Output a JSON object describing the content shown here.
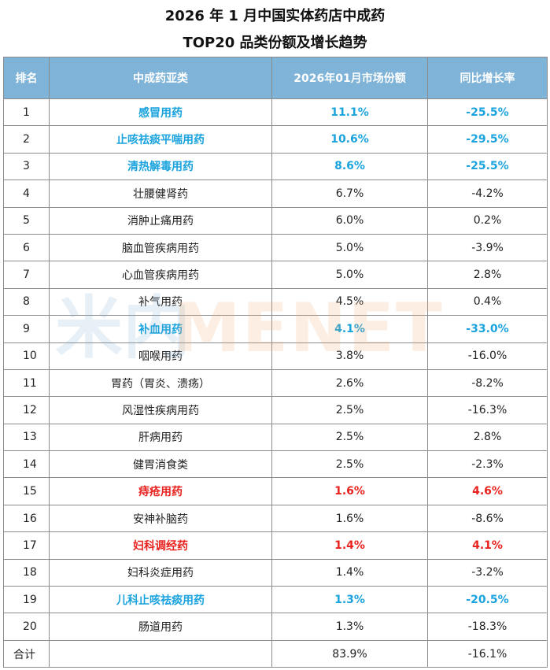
{
  "title_line1": "2026 年 1 月中国实体药店中成药",
  "title_line2": "TOP20 品类份额及增长趋势",
  "watermark": {
    "left": "米内",
    "right": "MENET"
  },
  "headers": [
    "排名",
    "中成药亚类",
    "2026年01月市场份额",
    "同比增长率"
  ],
  "colors": {
    "header_bg": "#7fb4d8",
    "highlight_blue": "#1aa3dd",
    "highlight_red": "#e8231f"
  },
  "chart_data": {
    "type": "table",
    "columns": [
      "排名",
      "中成药亚类",
      "2026年01月市场份额",
      "同比增长率"
    ],
    "rows": [
      {
        "rank": "1",
        "category": "感冒用药",
        "share": "11.1%",
        "growth": "-25.5%",
        "highlight": "blue"
      },
      {
        "rank": "2",
        "category": "止咳祛痰平喘用药",
        "share": "10.6%",
        "growth": "-29.5%",
        "highlight": "blue"
      },
      {
        "rank": "3",
        "category": "清热解毒用药",
        "share": "8.6%",
        "growth": "-25.5%",
        "highlight": "blue"
      },
      {
        "rank": "4",
        "category": "壮腰健肾药",
        "share": "6.7%",
        "growth": "-4.2%",
        "highlight": ""
      },
      {
        "rank": "5",
        "category": "消肿止痛用药",
        "share": "6.0%",
        "growth": "0.2%",
        "highlight": ""
      },
      {
        "rank": "6",
        "category": "脑血管疾病用药",
        "share": "5.0%",
        "growth": "-3.9%",
        "highlight": ""
      },
      {
        "rank": "7",
        "category": "心血管疾病用药",
        "share": "5.0%",
        "growth": "2.8%",
        "highlight": ""
      },
      {
        "rank": "8",
        "category": "补气用药",
        "share": "4.5%",
        "growth": "0.4%",
        "highlight": ""
      },
      {
        "rank": "9",
        "category": "补血用药",
        "share": "4.1%",
        "growth": "-33.0%",
        "highlight": "blue"
      },
      {
        "rank": "10",
        "category": "咽喉用药",
        "share": "3.8%",
        "growth": "-16.0%",
        "highlight": ""
      },
      {
        "rank": "11",
        "category": "胃药（胃炎、溃疡）",
        "share": "2.6%",
        "growth": "-8.2%",
        "highlight": ""
      },
      {
        "rank": "12",
        "category": "风湿性疾病用药",
        "share": "2.5%",
        "growth": "-16.3%",
        "highlight": ""
      },
      {
        "rank": "13",
        "category": "肝病用药",
        "share": "2.5%",
        "growth": "2.8%",
        "highlight": ""
      },
      {
        "rank": "14",
        "category": "健胃消食类",
        "share": "2.5%",
        "growth": "-2.3%",
        "highlight": ""
      },
      {
        "rank": "15",
        "category": "痔疮用药",
        "share": "1.6%",
        "growth": "4.6%",
        "highlight": "red"
      },
      {
        "rank": "16",
        "category": "安神补脑药",
        "share": "1.6%",
        "growth": "-8.6%",
        "highlight": ""
      },
      {
        "rank": "17",
        "category": "妇科调经药",
        "share": "1.4%",
        "growth": "4.1%",
        "highlight": "red"
      },
      {
        "rank": "18",
        "category": "妇科炎症用药",
        "share": "1.4%",
        "growth": "-3.2%",
        "highlight": ""
      },
      {
        "rank": "19",
        "category": "儿科止咳祛痰用药",
        "share": "1.3%",
        "growth": "-20.5%",
        "highlight": "blue"
      },
      {
        "rank": "20",
        "category": "肠道用药",
        "share": "1.3%",
        "growth": "-18.3%",
        "highlight": ""
      }
    ],
    "total": {
      "label": "合计",
      "share": "83.9%",
      "growth": "-16.1%"
    }
  }
}
